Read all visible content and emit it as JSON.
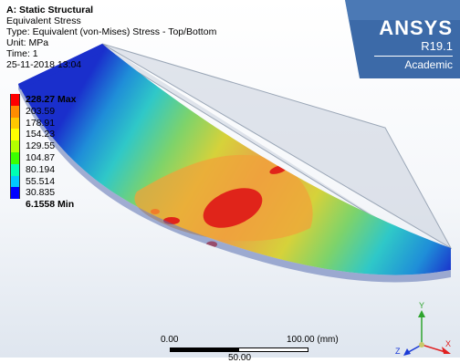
{
  "info": {
    "title": "A: Static Structural",
    "lines": [
      "Equivalent Stress",
      "Type: Equivalent (von-Mises) Stress - Top/Bottom",
      "Unit: MPa",
      "Time: 1",
      "25-11-2018 13:04"
    ]
  },
  "logo": {
    "brand": "ANSYS",
    "version": "R19.1",
    "edition": "Academic"
  },
  "legend": {
    "max_label": "228.27 Max",
    "values": [
      "203.59",
      "178.91",
      "154.23",
      "129.55",
      "104.87",
      "80.194",
      "55.514",
      "30.835"
    ],
    "min_label": "6.1558 Min",
    "colors": [
      "#ff0000",
      "#ff8c00",
      "#ffc800",
      "#ffff00",
      "#b4ff00",
      "#3cff00",
      "#00ffb4",
      "#00c8ff",
      "#0000ff"
    ]
  },
  "scale": {
    "left_label": "0.00",
    "right_label": "100.00 (mm)",
    "mid_label": "50.00"
  },
  "triad": {
    "x": "X",
    "y": "Y",
    "z": "Z"
  }
}
